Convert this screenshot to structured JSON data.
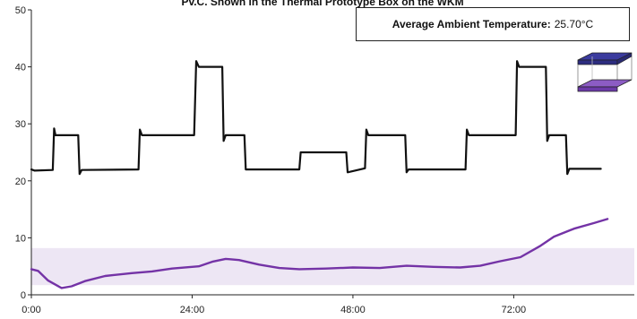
{
  "chart_data": {
    "type": "line",
    "title": "Pv.C. Shown in the Thermal Prototype Box on the WKM",
    "xlabel": "",
    "ylabel": "",
    "xlim": [
      0,
      90
    ],
    "ylim": [
      0,
      50
    ],
    "x_ticks": [
      {
        "value": 0,
        "label": "0:00"
      },
      {
        "value": 24,
        "label": "24:00"
      },
      {
        "value": 48,
        "label": "48:00"
      },
      {
        "value": 72,
        "label": "72:00"
      }
    ],
    "y_ticks": [
      0,
      10,
      20,
      30,
      40,
      50
    ],
    "band": {
      "from": 1.7,
      "to": 8.2,
      "color": "#ede6f4"
    },
    "annotation": {
      "label": "Average Ambient Temperature:",
      "value": "25.70°C"
    },
    "colors": {
      "ambient": "#111111",
      "inner": "#7433a6",
      "axis": "#222222"
    },
    "series": [
      {
        "color": "#111111",
        "points": [
          [
            0,
            22
          ],
          [
            0.5,
            21.8
          ],
          [
            3.2,
            21.9
          ],
          [
            3.4,
            29.2
          ],
          [
            3.6,
            28
          ],
          [
            7,
            28
          ],
          [
            7.2,
            21.2
          ],
          [
            7.5,
            21.9
          ],
          [
            16,
            22
          ],
          [
            16.2,
            29
          ],
          [
            16.5,
            28
          ],
          [
            24.3,
            28
          ],
          [
            24.6,
            41
          ],
          [
            25,
            40
          ],
          [
            28.5,
            40
          ],
          [
            28.7,
            27
          ],
          [
            29,
            28
          ],
          [
            31.8,
            28
          ],
          [
            32,
            22
          ],
          [
            40,
            22
          ],
          [
            40.2,
            25
          ],
          [
            47,
            25
          ],
          [
            47.2,
            21.5
          ],
          [
            49.8,
            22.2
          ],
          [
            50,
            29
          ],
          [
            50.3,
            28
          ],
          [
            55.8,
            28
          ],
          [
            56,
            21.5
          ],
          [
            56.3,
            22
          ],
          [
            64.8,
            22
          ],
          [
            65,
            29
          ],
          [
            65.3,
            28
          ],
          [
            72.3,
            28
          ],
          [
            72.5,
            41
          ],
          [
            72.8,
            40
          ],
          [
            76.8,
            40
          ],
          [
            77,
            27
          ],
          [
            77.3,
            28
          ],
          [
            79.8,
            28
          ],
          [
            80,
            21.2
          ],
          [
            80.3,
            22.1
          ],
          [
            85,
            22.1
          ]
        ]
      },
      {
        "color": "#7433a6",
        "points": [
          [
            0,
            4.5
          ],
          [
            1,
            4.2
          ],
          [
            2.5,
            2.5
          ],
          [
            4.5,
            1.2
          ],
          [
            6,
            1.5
          ],
          [
            8,
            2.4
          ],
          [
            11,
            3.3
          ],
          [
            15,
            3.8
          ],
          [
            18,
            4.1
          ],
          [
            21,
            4.6
          ],
          [
            25,
            5
          ],
          [
            27,
            5.8
          ],
          [
            29,
            6.3
          ],
          [
            31,
            6.1
          ],
          [
            34,
            5.3
          ],
          [
            37,
            4.7
          ],
          [
            40,
            4.5
          ],
          [
            44,
            4.6
          ],
          [
            48,
            4.8
          ],
          [
            52,
            4.7
          ],
          [
            56,
            5.1
          ],
          [
            60,
            4.9
          ],
          [
            64,
            4.8
          ],
          [
            67,
            5.1
          ],
          [
            70,
            5.9
          ],
          [
            73,
            6.6
          ],
          [
            76,
            8.6
          ],
          [
            78,
            10.2
          ],
          [
            81,
            11.6
          ],
          [
            84,
            12.6
          ],
          [
            86,
            13.3
          ]
        ]
      }
    ]
  }
}
